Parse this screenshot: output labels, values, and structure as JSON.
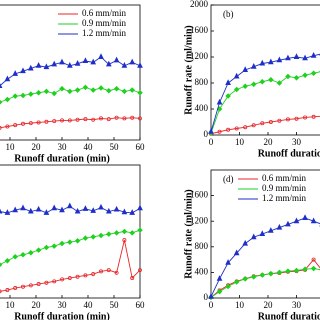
{
  "chart_data": [
    {
      "type": "line",
      "xlabel": "Runoff duration (min)",
      "xlim": [
        0,
        60
      ],
      "ylim": [
        0,
        2000
      ],
      "xticks": [
        10,
        20,
        30,
        40,
        50,
        60
      ],
      "legend": "upper right",
      "x": [
        0,
        3,
        6,
        9,
        12,
        15,
        18,
        21,
        24,
        27,
        30,
        33,
        36,
        39,
        42,
        45,
        48,
        51,
        54,
        57,
        60
      ],
      "series": [
        {
          "name": "0.6 mm/min",
          "color": "#e8262a",
          "marker": "circle",
          "values": [
            120,
            150,
            180,
            200,
            220,
            240,
            250,
            260,
            270,
            280,
            290,
            290,
            300,
            310,
            300,
            320,
            310,
            330,
            320,
            330,
            320
          ]
        },
        {
          "name": "0.9 mm/min",
          "color": "#1fd11f",
          "marker": "diamond",
          "values": [
            420,
            480,
            560,
            600,
            650,
            660,
            680,
            700,
            720,
            690,
            760,
            720,
            740,
            780,
            740,
            770,
            730,
            760,
            720,
            740,
            700
          ]
        },
        {
          "name": "1.2 mm/min",
          "color": "#1f2fc8",
          "marker": "triangle",
          "values": [
            500,
            620,
            800,
            900,
            980,
            1020,
            1060,
            1100,
            1080,
            1120,
            1150,
            1100,
            1130,
            1170,
            1150,
            1230,
            1120,
            1180,
            1100,
            1150,
            1100
          ]
        }
      ]
    },
    {
      "type": "line",
      "panel_label": "(b)",
      "xlabel": "Runoff duration (min)",
      "ylabel": "Runoff rate (ml/min)",
      "xlim": [
        0,
        60
      ],
      "ylim": [
        0,
        2000
      ],
      "xticks": [
        0,
        10,
        20,
        30,
        40
      ],
      "yticks": [
        0,
        400,
        800,
        1200,
        1600,
        2000
      ],
      "x": [
        0,
        3,
        6,
        9,
        12,
        15,
        18,
        21,
        24,
        27,
        30,
        33,
        36,
        39,
        42
      ],
      "series": [
        {
          "color": "#e8262a",
          "marker": "circle",
          "values": [
            20,
            50,
            80,
            100,
            120,
            150,
            180,
            200,
            220,
            240,
            250,
            270,
            280,
            290,
            300
          ]
        },
        {
          "color": "#1fd11f",
          "marker": "diamond",
          "values": [
            30,
            400,
            600,
            700,
            750,
            780,
            820,
            850,
            800,
            900,
            880,
            920,
            950,
            980,
            1000
          ]
        },
        {
          "color": "#1f2fc8",
          "marker": "triangle",
          "values": [
            50,
            500,
            800,
            900,
            1000,
            1050,
            1100,
            1120,
            1150,
            1180,
            1200,
            1180,
            1220,
            1250,
            1200
          ]
        }
      ]
    },
    {
      "type": "line",
      "xlabel": "Runoff duration (min)",
      "xlim": [
        0,
        60
      ],
      "ylim": [
        0,
        2000
      ],
      "xticks": [
        10,
        20,
        30,
        40,
        50,
        60
      ],
      "x": [
        0,
        3,
        6,
        9,
        12,
        15,
        18,
        21,
        24,
        27,
        30,
        33,
        36,
        39,
        42,
        45,
        48,
        51,
        54,
        57,
        60
      ],
      "series": [
        {
          "color": "#e8262a",
          "marker": "circle",
          "values": [
            60,
            80,
            100,
            120,
            150,
            170,
            190,
            210,
            230,
            250,
            280,
            300,
            320,
            340,
            360,
            400,
            420,
            380,
            870,
            300,
            420
          ]
        },
        {
          "color": "#1fd11f",
          "marker": "diamond",
          "values": [
            350,
            420,
            500,
            560,
            620,
            650,
            680,
            720,
            760,
            780,
            820,
            840,
            860,
            900,
            920,
            940,
            960,
            980,
            1000,
            980,
            1020
          ]
        },
        {
          "color": "#1f2fc8",
          "marker": "triangle",
          "values": [
            1100,
            1250,
            1300,
            1280,
            1320,
            1350,
            1300,
            1330,
            1280,
            1350,
            1320,
            1380,
            1300,
            1340,
            1310,
            1360,
            1300,
            1330,
            1290,
            1280,
            1350
          ]
        }
      ]
    },
    {
      "type": "line",
      "panel_label": "(d)",
      "xlabel": "Runoff duration (min)",
      "ylabel": "Runoff rate (ml/min)",
      "xlim": [
        0,
        60
      ],
      "ylim": [
        0,
        2000
      ],
      "xticks": [
        0,
        10,
        20,
        30,
        40
      ],
      "yticks": [
        0,
        400,
        800,
        1200,
        1600
      ],
      "legend": "upper right",
      "x": [
        0,
        3,
        6,
        9,
        12,
        15,
        18,
        21,
        24,
        27,
        30,
        33,
        36,
        39,
        42
      ],
      "series": [
        {
          "name": "0.6 mm/min",
          "color": "#e8262a",
          "marker": "circle",
          "values": [
            10,
            120,
            200,
            260,
            300,
            340,
            360,
            380,
            390,
            410,
            420,
            440,
            600,
            430,
            450
          ]
        },
        {
          "name": "0.9 mm/min",
          "color": "#1fd11f",
          "marker": "diamond",
          "values": [
            10,
            100,
            180,
            250,
            300,
            330,
            360,
            380,
            400,
            420,
            430,
            450,
            460,
            440,
            450
          ]
        },
        {
          "name": "1.2 mm/min",
          "color": "#1f2fc8",
          "marker": "triangle",
          "values": [
            20,
            300,
            550,
            700,
            850,
            950,
            1000,
            1050,
            1100,
            1150,
            1200,
            1250,
            1200,
            1150,
            1100
          ]
        }
      ]
    }
  ]
}
